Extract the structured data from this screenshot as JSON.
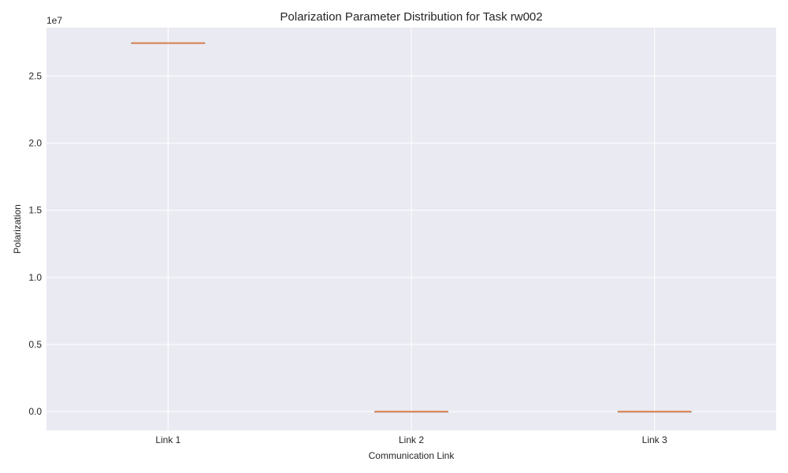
{
  "chart_data": {
    "type": "box",
    "title": "Polarization Parameter Distribution for Task rw002",
    "xlabel": "Communication Link",
    "ylabel": "Polarization",
    "offset_text": "1e7",
    "categories": [
      "Link 1",
      "Link 2",
      "Link 3"
    ],
    "y_scale": 10000000,
    "ylim": [
      -0.14,
      2.86
    ],
    "yticks": [
      0.0,
      0.5,
      1.0,
      1.5,
      2.0,
      2.5
    ],
    "ytick_labels": [
      "0.0",
      "0.5",
      "1.0",
      "1.5",
      "2.0",
      "2.5"
    ],
    "boxes": [
      {
        "name": "Link 1",
        "min": 27450000,
        "q1": 27450000,
        "median": 27450000,
        "q3": 27450000,
        "max": 27450000
      },
      {
        "name": "Link 2",
        "min": 0,
        "q1": 0,
        "median": 0,
        "q3": 0,
        "max": 0
      },
      {
        "name": "Link 3",
        "min": 0,
        "q1": 0,
        "median": 0,
        "q3": 0,
        "max": 0
      }
    ],
    "grid": true,
    "colors": {
      "plot_background": "#eaeaf2",
      "grid": "#ffffff",
      "box_edge": "#404040",
      "median": "#dd8452"
    }
  }
}
